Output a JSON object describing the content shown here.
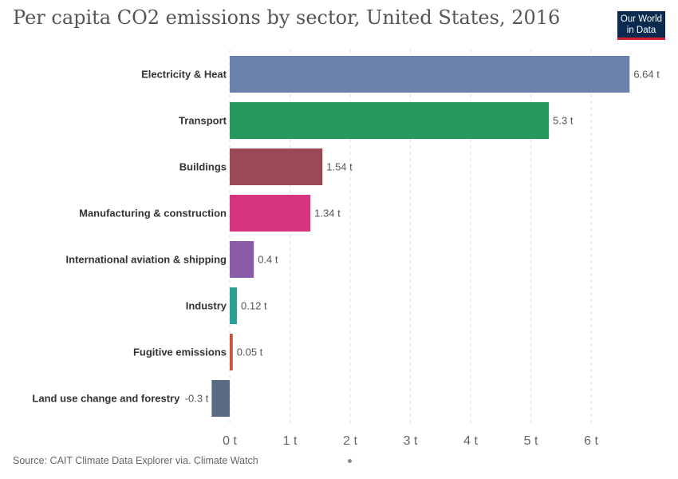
{
  "title": "Per capita CO2 emissions by sector, United States, 2016",
  "logo": {
    "line1": "Our World",
    "line2": "in Data"
  },
  "source": "Source: CAIT Climate Data Explorer via. Climate Watch",
  "chart_data": {
    "type": "bar",
    "orientation": "horizontal",
    "title": "Per capita CO2 emissions by sector, United States, 2016",
    "xlim": [
      -0.3,
      6.64
    ],
    "grid": "vertical dashed",
    "ticks": [
      {
        "value": 0,
        "label": "0 t"
      },
      {
        "value": 1,
        "label": "1 t"
      },
      {
        "value": 2,
        "label": "2 t"
      },
      {
        "value": 3,
        "label": "3 t"
      },
      {
        "value": 4,
        "label": "4 t"
      },
      {
        "value": 5,
        "label": "5 t"
      },
      {
        "value": 6,
        "label": "6 t"
      }
    ],
    "bars": [
      {
        "category": "Electricity & Heat",
        "value": 6.64,
        "label": "6.64 t",
        "color": "#6b81ab"
      },
      {
        "category": "Transport",
        "value": 5.3,
        "label": "5.3 t",
        "color": "#27995c"
      },
      {
        "category": "Buildings",
        "value": 1.54,
        "label": "1.54 t",
        "color": "#9b4a55"
      },
      {
        "category": "Manufacturing & construction",
        "value": 1.34,
        "label": "1.34 t",
        "color": "#d7327e"
      },
      {
        "category": "International aviation & shipping",
        "value": 0.4,
        "label": "0.4 t",
        "color": "#8a5ca7"
      },
      {
        "category": "Industry",
        "value": 0.12,
        "label": "0.12 t",
        "color": "#2a9f96"
      },
      {
        "category": "Fugitive emissions",
        "value": 0.05,
        "label": "0.05 t",
        "color": "#c5543a"
      },
      {
        "category": "Land use change and forestry",
        "value": -0.3,
        "label": "-0.3 t",
        "color": "#596a85"
      }
    ]
  }
}
